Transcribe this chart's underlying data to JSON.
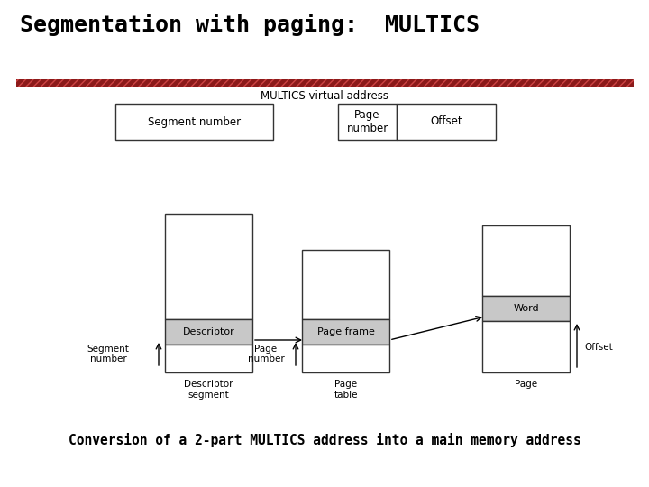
{
  "title": "Segmentation with paging:  MULTICS",
  "subtitle": "Conversion of a 2-part MULTICS address into a main memory address",
  "bg_color": "#ffffff",
  "title_fontsize": 18,
  "subtitle_fontsize": 10.5,
  "divider_color": "#8b1a1a",
  "box_edge_color": "#333333",
  "gray_fill": "#c8c8c8",
  "white_fill": "#ffffff",
  "virtual_addr_label": "MULTICS virtual address",
  "seg_number_label": "Segment number",
  "page_number_label": "Page\nnumber",
  "offset_label": "Offset",
  "descriptor_label": "Descriptor",
  "page_frame_label": "Page frame",
  "word_label": "Word",
  "seg_number_ann": "Segment\nnumber",
  "page_number_ann": "Page\nnumber",
  "offset_ann": "Offset",
  "desc_seg_ann": "Descriptor\nsegment",
  "page_table_ann": "Page\ntable",
  "page_ann": "Page"
}
